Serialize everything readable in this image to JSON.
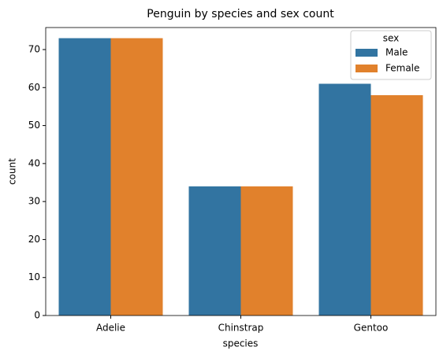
{
  "chart_data": {
    "type": "grouped-bar",
    "title": "Penguin by species and sex count",
    "x_label": "species",
    "y_label": "count",
    "categories": [
      "Adelie",
      "Chinstrap",
      "Gentoo"
    ],
    "series": [
      {
        "name": "Male",
        "color": "#3274a1",
        "values": [
          73,
          34,
          61
        ]
      },
      {
        "name": "Female",
        "color": "#e1812c",
        "values": [
          73,
          34,
          58
        ]
      }
    ],
    "legend_title": "sex",
    "legend_position": "upper-right",
    "ylim": [
      0,
      75.8
    ],
    "yticks": [
      0,
      10,
      20,
      30,
      40,
      50,
      60,
      70
    ],
    "grid": false
  }
}
